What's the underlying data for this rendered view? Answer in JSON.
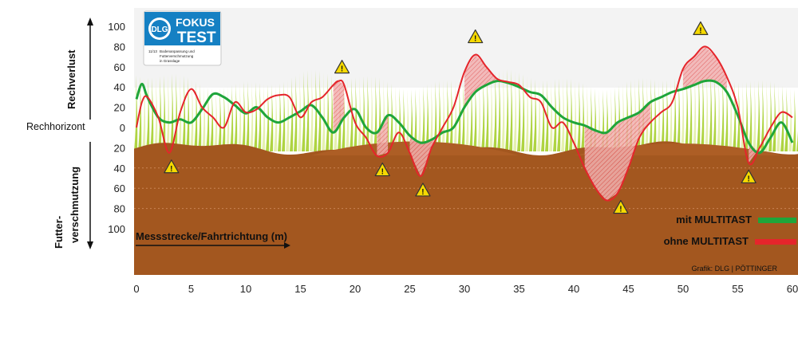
{
  "chart_data": {
    "type": "line",
    "x_unit_label": "Messstrecke/Fahrtrichtung (m)",
    "xlim": [
      0,
      60
    ],
    "x_ticks": [
      0,
      5,
      10,
      15,
      20,
      25,
      30,
      35,
      40,
      45,
      50,
      55,
      60
    ],
    "y_upper_label": "Rechverlust",
    "y_lower_label": "Futter-\nverschmutzung",
    "y_lower_label_lines": [
      "Futter-",
      "verschmutzung"
    ],
    "y_zero_label": "Rechhorizont",
    "y_ticks": [
      "100",
      "80",
      "60",
      "40",
      "20",
      "0",
      "20",
      "40",
      "60",
      "80",
      "100"
    ],
    "y_tick_values": [
      100,
      80,
      60,
      40,
      20,
      0,
      -20,
      -40,
      -60,
      -80,
      -100
    ],
    "ylim": [
      -100,
      100
    ],
    "series": [
      {
        "name": "mit MULTITAST",
        "color": "#1fa53a",
        "x": [
          0,
          0.5,
          1,
          2,
          3,
          4,
          5,
          6,
          7,
          8,
          9,
          10,
          11,
          12,
          13,
          14,
          15,
          16,
          17,
          18,
          19,
          20,
          21,
          22,
          23,
          24,
          25,
          26,
          27,
          28,
          29,
          30,
          31,
          32,
          33,
          34,
          35,
          36,
          37,
          38,
          39,
          40,
          41,
          42,
          43,
          44,
          45,
          46,
          47,
          48,
          49,
          50,
          51,
          52,
          53,
          54,
          55,
          56,
          57,
          58,
          59,
          60
        ],
        "y": [
          28,
          43,
          30,
          10,
          5,
          8,
          5,
          18,
          33,
          30,
          22,
          14,
          20,
          10,
          5,
          10,
          16,
          22,
          10,
          -5,
          10,
          18,
          0,
          -5,
          12,
          5,
          -8,
          -15,
          -12,
          -5,
          0,
          20,
          35,
          42,
          46,
          44,
          40,
          35,
          32,
          20,
          10,
          5,
          2,
          -3,
          -5,
          5,
          10,
          15,
          25,
          30,
          35,
          38,
          42,
          46,
          45,
          35,
          12,
          -15,
          -25,
          -10,
          5,
          -15
        ]
      },
      {
        "name": "ohne MULTITAST",
        "color": "#e5252b",
        "x": [
          0,
          0.5,
          1,
          2,
          3,
          4,
          5,
          6,
          7,
          8,
          9,
          10,
          11,
          12,
          13,
          14,
          15,
          16,
          17,
          18,
          18.5,
          19,
          20,
          21,
          22,
          23,
          24,
          25,
          26,
          27,
          28,
          29,
          30,
          31,
          32,
          33,
          34,
          35,
          36,
          37,
          38,
          39,
          40,
          41,
          42,
          43,
          44,
          45,
          46,
          47,
          48,
          49,
          50,
          51,
          52,
          53,
          54,
          55,
          56,
          57,
          58,
          59,
          60
        ],
        "y": [
          0,
          25,
          30,
          10,
          -25,
          15,
          38,
          20,
          10,
          0,
          25,
          15,
          18,
          28,
          32,
          30,
          10,
          25,
          30,
          42,
          46,
          42,
          5,
          -10,
          -28,
          -25,
          -5,
          -25,
          -48,
          -20,
          0,
          20,
          55,
          72,
          60,
          48,
          45,
          42,
          30,
          25,
          0,
          5,
          -15,
          -40,
          -60,
          -72,
          -65,
          -40,
          -10,
          5,
          15,
          25,
          58,
          70,
          80,
          70,
          50,
          20,
          -35,
          -20,
          0,
          15,
          10
        ]
      }
    ],
    "warning_markers": [
      {
        "x": 3.2,
        "position": "below"
      },
      {
        "x": 18.8,
        "position": "above"
      },
      {
        "x": 22.5,
        "position": "below"
      },
      {
        "x": 26.2,
        "position": "below"
      },
      {
        "x": 31.0,
        "position": "above"
      },
      {
        "x": 44.3,
        "position": "below"
      },
      {
        "x": 51.6,
        "position": "above"
      },
      {
        "x": 56.0,
        "position": "below"
      }
    ],
    "colors": {
      "soil": "#a3571f",
      "soil_mound": "#ad5e25",
      "grass": "#a6cf2d",
      "grass_light": "#e2f0a6",
      "background_band": "#f3f3f3",
      "warning_fill": "#f6d900"
    }
  },
  "legend": {
    "items": [
      {
        "label": "mit MULTITAST",
        "color": "#1fa53a"
      },
      {
        "label": "ohne MULTITAST",
        "color": "#e5252b"
      }
    ]
  },
  "credit": "Grafik: DLG | PÖTTINGER",
  "badge": {
    "logo_text": "DLG",
    "line1": "FOKUS",
    "line2": "TEST",
    "code": "11/13",
    "description": [
      "Bodenanpassung und",
      "Futterverschmutzung",
      "in Grasslage"
    ]
  }
}
